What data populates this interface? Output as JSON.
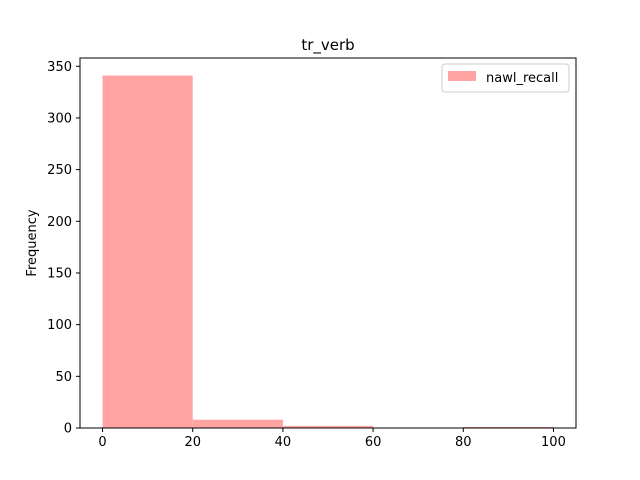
{
  "chart_data": {
    "type": "bar",
    "subtype": "histogram",
    "title": "tr_verb",
    "xlabel": "",
    "ylabel": "Frequency",
    "bins": [
      {
        "start": 0,
        "end": 20,
        "value": 341
      },
      {
        "start": 20,
        "end": 40,
        "value": 8
      },
      {
        "start": 40,
        "end": 60,
        "value": 2
      },
      {
        "start": 60,
        "end": 80,
        "value": 0
      },
      {
        "start": 80,
        "end": 100,
        "value": 1
      }
    ],
    "xlim": [
      -5,
      105
    ],
    "ylim": [
      0,
      358
    ],
    "xticks": [
      0,
      20,
      40,
      60,
      80,
      100
    ],
    "yticks": [
      0,
      50,
      100,
      150,
      200,
      250,
      300,
      350
    ],
    "grid": false,
    "legend_position": "top-right",
    "series": [
      {
        "name": "nawl_recall",
        "color": "#ffa3a3"
      }
    ]
  }
}
